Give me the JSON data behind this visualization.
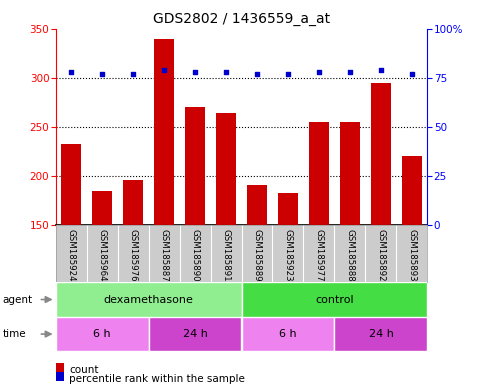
{
  "title": "GDS2802 / 1436559_a_at",
  "samples": [
    "GSM185924",
    "GSM185964",
    "GSM185976",
    "GSM185887",
    "GSM185890",
    "GSM185891",
    "GSM185889",
    "GSM185923",
    "GSM185977",
    "GSM185888",
    "GSM185892",
    "GSM185893"
  ],
  "counts": [
    232,
    184,
    196,
    340,
    270,
    264,
    190,
    182,
    255,
    255,
    295,
    220
  ],
  "percentiles": [
    78,
    77,
    77,
    79,
    78,
    78,
    77,
    77,
    78,
    78,
    79,
    77
  ],
  "bar_color": "#cc0000",
  "dot_color": "#0000cc",
  "ylim_left": [
    150,
    350
  ],
  "ylim_right": [
    0,
    100
  ],
  "yticks_left": [
    150,
    200,
    250,
    300,
    350
  ],
  "yticks_right": [
    0,
    25,
    50,
    75,
    100
  ],
  "agent_groups": [
    {
      "label": "dexamethasone",
      "start": 0,
      "end": 6,
      "color": "#90ee90"
    },
    {
      "label": "control",
      "start": 6,
      "end": 12,
      "color": "#44dd44"
    }
  ],
  "time_groups": [
    {
      "label": "6 h",
      "start": 0,
      "end": 3,
      "color": "#ee82ee"
    },
    {
      "label": "24 h",
      "start": 3,
      "end": 6,
      "color": "#cc44cc"
    },
    {
      "label": "6 h",
      "start": 6,
      "end": 9,
      "color": "#ee82ee"
    },
    {
      "label": "24 h",
      "start": 9,
      "end": 12,
      "color": "#cc44cc"
    }
  ],
  "legend_count_color": "#cc0000",
  "legend_dot_color": "#0000cc",
  "background_color": "#ffffff",
  "tick_area_color": "#cccccc",
  "title_fontsize": 10,
  "axis_fontsize": 7.5,
  "sample_fontsize": 6.2,
  "label_fontsize": 8,
  "legend_fontsize": 7.5,
  "agent_label_fontsize": 8,
  "time_label_fontsize": 8
}
